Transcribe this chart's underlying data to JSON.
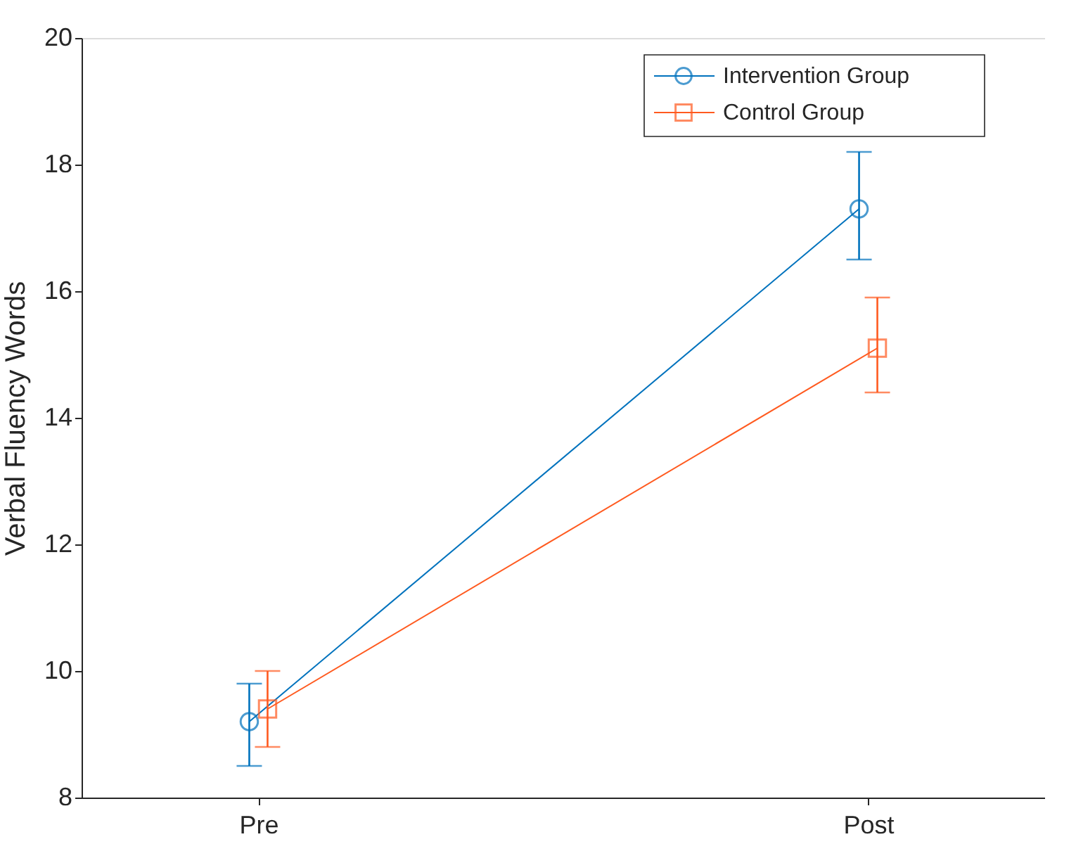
{
  "chart_data": {
    "type": "line",
    "ylabel": "Verbal Fluency Words",
    "categories": [
      "Pre",
      "Post"
    ],
    "series": [
      {
        "name": "Intervention Group",
        "color": "#0072bd",
        "marker": "circle",
        "values": [
          9.2,
          17.3
        ],
        "errors": [
          [
            8.5,
            9.8
          ],
          [
            16.5,
            18.2
          ]
        ]
      },
      {
        "name": "Control Group",
        "color": "#ff5a1f",
        "marker": "square",
        "values": [
          9.4,
          15.1
        ],
        "errors": [
          [
            8.8,
            10.0
          ],
          [
            14.4,
            15.9
          ]
        ]
      }
    ],
    "ylim": [
      8,
      20
    ],
    "yticks": [
      8,
      10,
      12,
      14,
      16,
      18,
      20
    ],
    "grid": false,
    "legend": "top right",
    "line_style": "solid"
  }
}
